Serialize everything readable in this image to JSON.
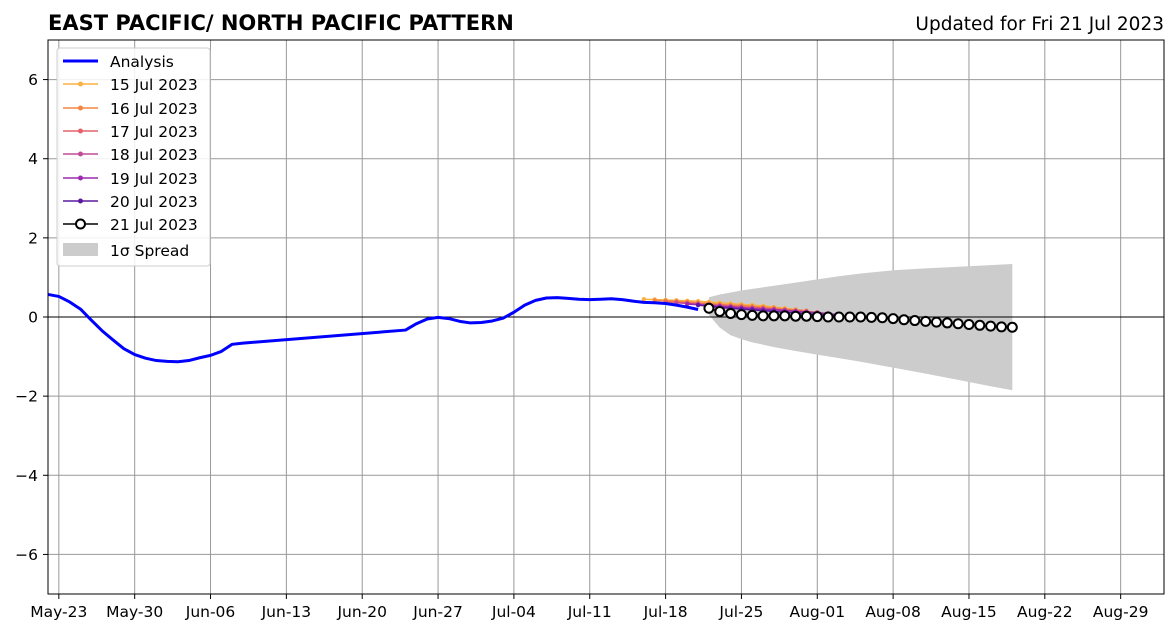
{
  "chart_data": {
    "type": "line",
    "title": "EAST PACIFIC/ NORTH PACIFIC PATTERN",
    "subtitle": "Updated for Fri 21 Jul 2023",
    "xlabel": "",
    "ylabel": "",
    "xlim": [
      "2023-05-22",
      "2023-09-02"
    ],
    "ylim": [
      -7,
      7
    ],
    "x_ticks": [
      "May-23",
      "May-30",
      "Jun-06",
      "Jun-13",
      "Jun-20",
      "Jun-27",
      "Jul-04",
      "Jul-11",
      "Jul-18",
      "Jul-25",
      "Aug-01",
      "Aug-08",
      "Aug-15",
      "Aug-22",
      "Aug-29"
    ],
    "x_tick_dates": [
      "2023-05-23",
      "2023-05-30",
      "2023-06-06",
      "2023-06-13",
      "2023-06-20",
      "2023-06-27",
      "2023-07-04",
      "2023-07-11",
      "2023-07-18",
      "2023-07-25",
      "2023-08-01",
      "2023-08-08",
      "2023-08-15",
      "2023-08-22",
      "2023-08-29"
    ],
    "y_ticks": [
      6,
      4,
      2,
      0,
      -2,
      -4,
      -6
    ],
    "y_tick_labels": [
      "6",
      "4",
      "2",
      "0",
      "−2",
      "−4",
      "−6"
    ],
    "grid": true,
    "zero_line": true,
    "legend_position": "top-left",
    "colors": {
      "analysis": "#0000ff",
      "jul15": "#fcb040",
      "jul16": "#f58542",
      "jul17": "#e3626b",
      "jul18": "#c44a96",
      "jul19": "#9b2ab0",
      "jul20": "#5a1aa0",
      "jul21": "#000000",
      "spread": "#cccccc",
      "grid": "#999999"
    },
    "series": [
      {
        "name": "Analysis",
        "key": "analysis",
        "x": [
          "2023-05-22",
          "2023-05-23",
          "2023-05-24",
          "2023-05-25",
          "2023-05-26",
          "2023-05-27",
          "2023-05-28",
          "2023-05-29",
          "2023-05-30",
          "2023-05-31",
          "2023-06-01",
          "2023-06-02",
          "2023-06-03",
          "2023-06-04",
          "2023-06-05",
          "2023-06-06",
          "2023-06-07",
          "2023-06-08",
          "2023-06-09",
          "2023-06-24",
          "2023-06-25",
          "2023-06-26",
          "2023-06-27",
          "2023-06-28",
          "2023-06-29",
          "2023-06-30",
          "2023-07-01",
          "2023-07-02",
          "2023-07-03",
          "2023-07-04",
          "2023-07-05",
          "2023-07-06",
          "2023-07-07",
          "2023-07-08",
          "2023-07-09",
          "2023-07-10",
          "2023-07-11",
          "2023-07-12",
          "2023-07-13",
          "2023-07-14",
          "2023-07-15",
          "2023-07-16",
          "2023-07-17",
          "2023-07-18",
          "2023-07-19",
          "2023-07-20",
          "2023-07-21"
        ],
        "values": [
          0.57,
          0.52,
          0.38,
          0.2,
          -0.08,
          -0.35,
          -0.58,
          -0.8,
          -0.95,
          -1.04,
          -1.1,
          -1.12,
          -1.13,
          -1.1,
          -1.03,
          -0.97,
          -0.87,
          -0.69,
          -0.66,
          -0.33,
          -0.17,
          -0.05,
          -0.01,
          -0.04,
          -0.11,
          -0.15,
          -0.14,
          -0.1,
          -0.03,
          0.12,
          0.3,
          0.42,
          0.48,
          0.49,
          0.47,
          0.45,
          0.44,
          0.45,
          0.46,
          0.44,
          0.4,
          0.37,
          0.36,
          0.34,
          0.3,
          0.25,
          0.19
        ]
      },
      {
        "name": "15 Jul 2023",
        "key": "jul15",
        "x": [
          "2023-07-16",
          "2023-07-17",
          "2023-07-18",
          "2023-07-19",
          "2023-07-20",
          "2023-07-21",
          "2023-07-22",
          "2023-07-23",
          "2023-07-24",
          "2023-07-25",
          "2023-07-26",
          "2023-07-27",
          "2023-07-28",
          "2023-07-29",
          "2023-07-30"
        ],
        "values": [
          0.45,
          0.44,
          0.43,
          0.42,
          0.41,
          0.4,
          0.38,
          0.36,
          0.34,
          0.32,
          0.3,
          0.28,
          0.25,
          0.22,
          0.19
        ]
      },
      {
        "name": "16 Jul 2023",
        "key": "jul16",
        "x": [
          "2023-07-17",
          "2023-07-18",
          "2023-07-19",
          "2023-07-20",
          "2023-07-21",
          "2023-07-22",
          "2023-07-23",
          "2023-07-24",
          "2023-07-25",
          "2023-07-26",
          "2023-07-27",
          "2023-07-28",
          "2023-07-29",
          "2023-07-30",
          "2023-07-31"
        ],
        "values": [
          0.42,
          0.41,
          0.4,
          0.38,
          0.36,
          0.34,
          0.32,
          0.3,
          0.29,
          0.27,
          0.25,
          0.23,
          0.2,
          0.18,
          0.16
        ]
      },
      {
        "name": "17 Jul 2023",
        "key": "jul17",
        "x": [
          "2023-07-18",
          "2023-07-19",
          "2023-07-20",
          "2023-07-21",
          "2023-07-22",
          "2023-07-23",
          "2023-07-24",
          "2023-07-25",
          "2023-07-26",
          "2023-07-27",
          "2023-07-28",
          "2023-07-29",
          "2023-07-30",
          "2023-07-31",
          "2023-08-01"
        ],
        "values": [
          0.38,
          0.37,
          0.35,
          0.34,
          0.32,
          0.3,
          0.28,
          0.26,
          0.24,
          0.22,
          0.2,
          0.18,
          0.16,
          0.14,
          0.12
        ]
      },
      {
        "name": "18 Jul 2023",
        "key": "jul18",
        "x": [
          "2023-07-19",
          "2023-07-20",
          "2023-07-21",
          "2023-07-22",
          "2023-07-23",
          "2023-07-24",
          "2023-07-25",
          "2023-07-26",
          "2023-07-27",
          "2023-07-28",
          "2023-07-29",
          "2023-07-30",
          "2023-07-31",
          "2023-08-01",
          "2023-08-02"
        ],
        "values": [
          0.36,
          0.34,
          0.32,
          0.3,
          0.28,
          0.26,
          0.24,
          0.22,
          0.21,
          0.19,
          0.17,
          0.15,
          0.13,
          0.11,
          0.09
        ]
      },
      {
        "name": "19 Jul 2023",
        "key": "jul19",
        "x": [
          "2023-07-20",
          "2023-07-21",
          "2023-07-22",
          "2023-07-23",
          "2023-07-24",
          "2023-07-25",
          "2023-07-26",
          "2023-07-27",
          "2023-07-28",
          "2023-07-29",
          "2023-07-30",
          "2023-07-31",
          "2023-08-01",
          "2023-08-02",
          "2023-08-03"
        ],
        "values": [
          0.33,
          0.31,
          0.29,
          0.27,
          0.25,
          0.23,
          0.21,
          0.19,
          0.18,
          0.16,
          0.14,
          0.12,
          0.1,
          0.08,
          0.06
        ]
      },
      {
        "name": "20 Jul 2023",
        "key": "jul20",
        "x": [
          "2023-07-21",
          "2023-07-22",
          "2023-07-23",
          "2023-07-24",
          "2023-07-25",
          "2023-07-26",
          "2023-07-27",
          "2023-07-28",
          "2023-07-29",
          "2023-07-30",
          "2023-07-31",
          "2023-08-01",
          "2023-08-02",
          "2023-08-03",
          "2023-08-04"
        ],
        "values": [
          0.3,
          0.27,
          0.24,
          0.22,
          0.2,
          0.18,
          0.16,
          0.14,
          0.12,
          0.1,
          0.08,
          0.06,
          0.04,
          0.03,
          0.02
        ]
      },
      {
        "name": "21 Jul 2023",
        "key": "jul21",
        "x": [
          "2023-07-22",
          "2023-07-23",
          "2023-07-24",
          "2023-07-25",
          "2023-07-26",
          "2023-07-27",
          "2023-07-28",
          "2023-07-29",
          "2023-07-30",
          "2023-07-31",
          "2023-08-01",
          "2023-08-02",
          "2023-08-03",
          "2023-08-04",
          "2023-08-05",
          "2023-08-06",
          "2023-08-07",
          "2023-08-08",
          "2023-08-09",
          "2023-08-10",
          "2023-08-11",
          "2023-08-12",
          "2023-08-13",
          "2023-08-14",
          "2023-08-15",
          "2023-08-16",
          "2023-08-17",
          "2023-08-18",
          "2023-08-19"
        ],
        "values": [
          0.22,
          0.14,
          0.09,
          0.06,
          0.04,
          0.03,
          0.03,
          0.03,
          0.02,
          0.02,
          0.01,
          0.0,
          0.0,
          0.0,
          0.0,
          -0.01,
          -0.02,
          -0.04,
          -0.07,
          -0.09,
          -0.11,
          -0.13,
          -0.15,
          -0.17,
          -0.19,
          -0.21,
          -0.23,
          -0.25,
          -0.26
        ]
      }
    ],
    "spread": {
      "name": "1σ Spread",
      "key": "spread",
      "x": [
        "2023-07-22",
        "2023-07-23",
        "2023-07-24",
        "2023-07-25",
        "2023-07-26",
        "2023-07-28",
        "2023-07-30",
        "2023-08-01",
        "2023-08-03",
        "2023-08-05",
        "2023-08-08",
        "2023-08-11",
        "2023-08-14",
        "2023-08-17",
        "2023-08-19"
      ],
      "upper": [
        0.5,
        0.57,
        0.62,
        0.67,
        0.71,
        0.79,
        0.87,
        0.95,
        1.03,
        1.1,
        1.18,
        1.23,
        1.27,
        1.31,
        1.34
      ],
      "lower": [
        0.05,
        -0.27,
        -0.46,
        -0.56,
        -0.64,
        -0.76,
        -0.86,
        -0.95,
        -1.04,
        -1.13,
        -1.28,
        -1.43,
        -1.59,
        -1.75,
        -1.85
      ]
    }
  }
}
